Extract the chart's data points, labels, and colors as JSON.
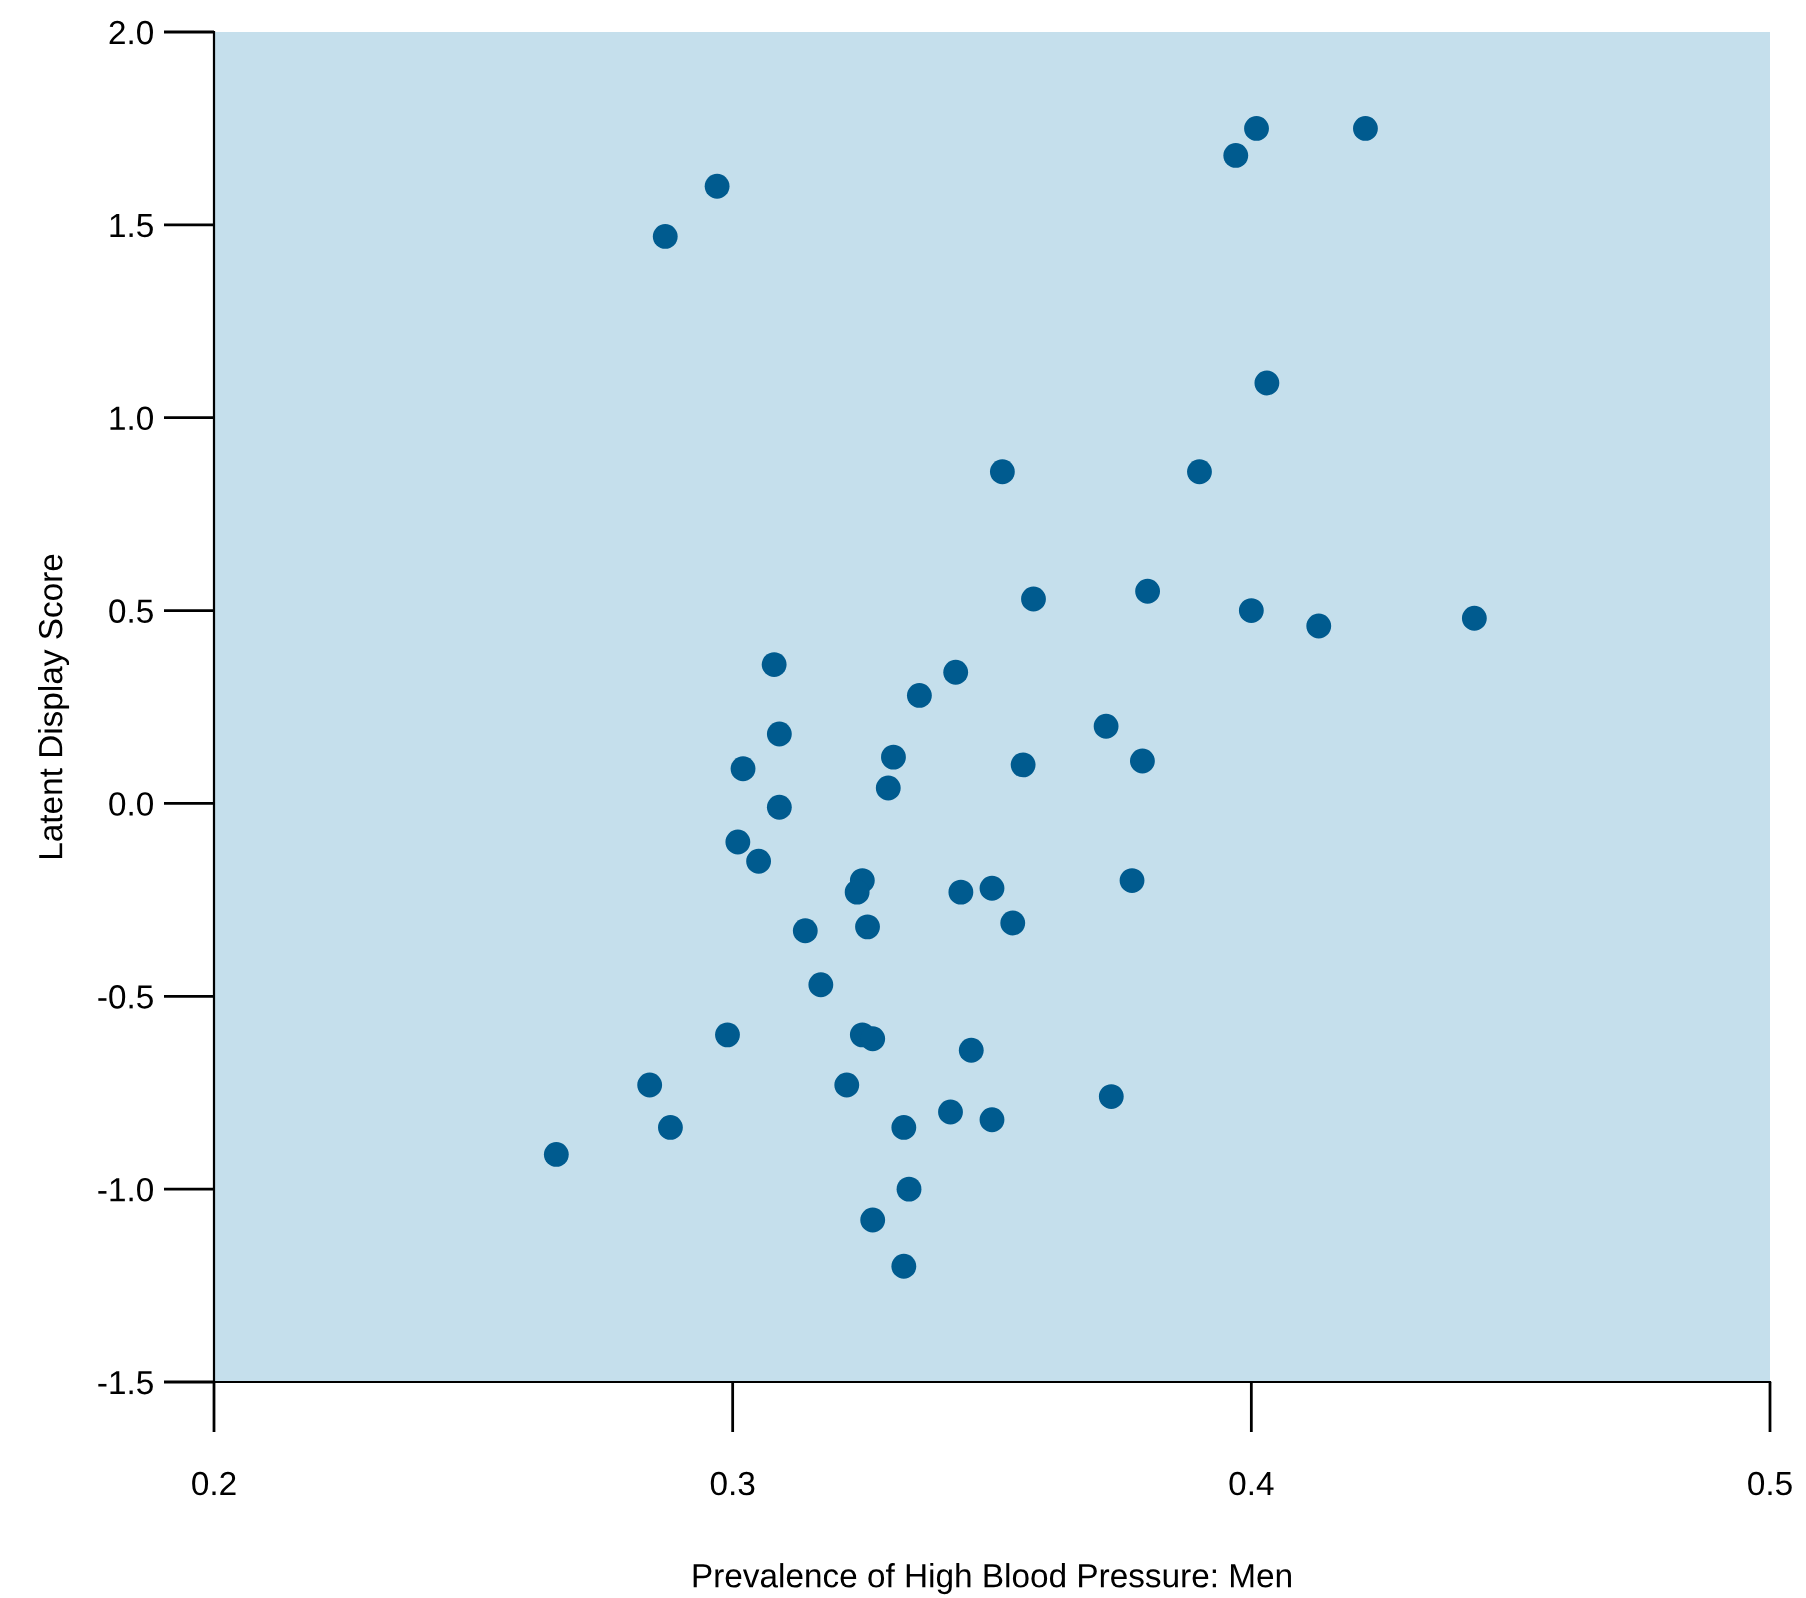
{
  "chart_data": {
    "type": "scatter",
    "xlabel": "Prevalence of High Blood Pressure: Men",
    "ylabel": "Latent Display Score",
    "x": [
      0.297,
      0.287,
      0.397,
      0.401,
      0.422,
      0.403,
      0.352,
      0.39,
      0.358,
      0.38,
      0.4,
      0.413,
      0.443,
      0.308,
      0.343,
      0.336,
      0.372,
      0.309,
      0.331,
      0.379,
      0.302,
      0.356,
      0.33,
      0.309,
      0.301,
      0.305,
      0.325,
      0.324,
      0.344,
      0.35,
      0.377,
      0.354,
      0.314,
      0.326,
      0.317,
      0.299,
      0.325,
      0.327,
      0.346,
      0.284,
      0.322,
      0.373,
      0.342,
      0.35,
      0.333,
      0.288,
      0.266,
      0.334,
      0.327,
      0.333
    ],
    "values": [
      1.6,
      1.47,
      1.68,
      1.75,
      1.75,
      1.09,
      0.86,
      0.86,
      0.53,
      0.55,
      0.5,
      0.46,
      0.48,
      0.36,
      0.34,
      0.28,
      0.2,
      0.18,
      0.12,
      0.11,
      0.09,
      0.1,
      0.04,
      -0.01,
      -0.1,
      -0.15,
      -0.2,
      -0.23,
      -0.23,
      -0.22,
      -0.2,
      -0.31,
      -0.33,
      -0.32,
      -0.47,
      -0.6,
      -0.6,
      -0.61,
      -0.64,
      -0.73,
      -0.73,
      -0.76,
      -0.8,
      -0.82,
      -0.84,
      -0.84,
      -0.91,
      -1.0,
      -1.08,
      -1.2
    ],
    "color": "#005b8f",
    "marker": "circle",
    "xlim": [
      0.2,
      0.5
    ],
    "xticks": [
      0.2,
      0.3,
      0.4,
      0.5
    ],
    "ylim": [
      -1.5,
      2.0
    ],
    "yticks": [
      -1.5,
      {
        "value": -1,
        "label": "-1.0"
      },
      -0.5,
      {
        "value": 0,
        "label": "0.0"
      },
      0.5,
      {
        "value": 1,
        "label": "1.0"
      },
      1.5,
      {
        "value": 2,
        "label": "2.0"
      }
    ],
    "grid": false
  }
}
